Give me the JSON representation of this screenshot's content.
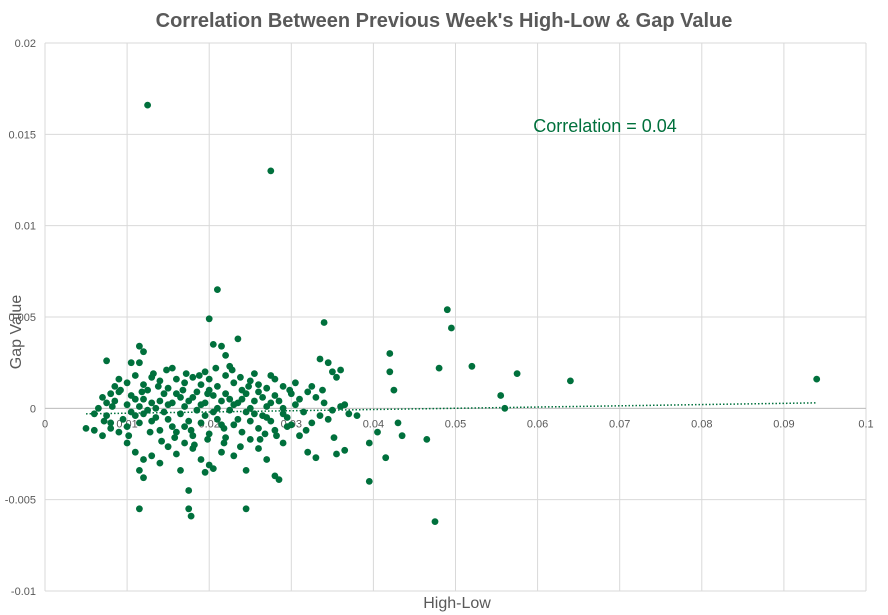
{
  "colors": {
    "marker": "#00703C",
    "grid": "#D9D9D9",
    "text": "#595959",
    "annotation": "#00703C"
  },
  "chart_data": {
    "type": "scatter",
    "title": "Correlation Between Previous Week's High-Low & Gap Value",
    "xlabel": "High-Low",
    "ylabel": "Gap Value",
    "xlim": [
      0,
      0.1
    ],
    "ylim": [
      -0.01,
      0.02
    ],
    "xticks": [
      "0",
      "0.01",
      "0.02",
      "0.03",
      "0.04",
      "0.05",
      "0.06",
      "0.07",
      "0.08",
      "0.09",
      "0.1"
    ],
    "yticks": [
      "-0.01",
      "-0.005",
      "0",
      "0.005",
      "0.01",
      "0.015",
      "0.02"
    ],
    "grid": true,
    "annotation": "Correlation = 0.04",
    "trendline": {
      "style": "dotted",
      "x": [
        0.005,
        0.094
      ],
      "y": [
        -0.0003,
        0.0003
      ]
    },
    "points": [
      [
        0.0125,
        0.0166
      ],
      [
        0.0275,
        0.013
      ],
      [
        0.021,
        0.0065
      ],
      [
        0.049,
        0.0054
      ],
      [
        0.0495,
        0.0044
      ],
      [
        0.034,
        0.0047
      ],
      [
        0.02,
        0.0049
      ],
      [
        0.0235,
        0.0038
      ],
      [
        0.0205,
        0.0035
      ],
      [
        0.0215,
        0.0034
      ],
      [
        0.0115,
        0.0034
      ],
      [
        0.012,
        0.0031
      ],
      [
        0.022,
        0.0029
      ],
      [
        0.042,
        0.003
      ],
      [
        0.042,
        0.002
      ],
      [
        0.048,
        0.0022
      ],
      [
        0.052,
        0.0023
      ],
      [
        0.0575,
        0.0019
      ],
      [
        0.064,
        0.0015
      ],
      [
        0.094,
        0.0016
      ],
      [
        0.0425,
        0.001
      ],
      [
        0.0555,
        0.0007
      ],
      [
        0.056,
        0.0
      ],
      [
        0.0475,
        -0.0062
      ],
      [
        0.0395,
        -0.004
      ],
      [
        0.0465,
        -0.0017
      ],
      [
        0.0435,
        -0.0015
      ],
      [
        0.0415,
        -0.0027
      ],
      [
        0.043,
        -0.0008
      ],
      [
        0.0335,
        0.0027
      ],
      [
        0.0345,
        0.0025
      ],
      [
        0.035,
        0.002
      ],
      [
        0.036,
        0.0021
      ],
      [
        0.0355,
        0.0017
      ],
      [
        0.0245,
        -0.0055
      ],
      [
        0.0115,
        -0.0055
      ],
      [
        0.0175,
        -0.0055
      ],
      [
        0.0178,
        -0.0059
      ],
      [
        0.0175,
        -0.0045
      ],
      [
        0.0285,
        -0.0039
      ],
      [
        0.028,
        -0.0037
      ],
      [
        0.0245,
        -0.0034
      ],
      [
        0.0205,
        -0.0033
      ],
      [
        0.0195,
        -0.0035
      ],
      [
        0.0115,
        -0.0034
      ],
      [
        0.012,
        -0.0038
      ],
      [
        0.0165,
        -0.0034
      ],
      [
        0.0075,
        0.0026
      ],
      [
        0.0105,
        0.0025
      ],
      [
        0.0115,
        0.0025
      ],
      [
        0.0155,
        0.0022
      ],
      [
        0.0195,
        0.002
      ],
      [
        0.0225,
        0.0023
      ],
      [
        0.0255,
        0.0019
      ],
      [
        0.0275,
        0.0018
      ],
      [
        0.0305,
        0.0014
      ],
      [
        0.0325,
        0.0012
      ],
      [
        0.0365,
        0.0002
      ],
      [
        0.038,
        -0.0004
      ],
      [
        0.0395,
        -0.0019
      ],
      [
        0.0405,
        -0.0013
      ],
      [
        0.0365,
        -0.0023
      ],
      [
        0.0355,
        -0.0025
      ],
      [
        0.033,
        -0.0027
      ],
      [
        0.032,
        -0.0024
      ],
      [
        0.031,
        -0.0015
      ],
      [
        0.0295,
        -0.001
      ],
      [
        0.029,
        -0.0019
      ],
      [
        0.027,
        -0.0028
      ],
      [
        0.026,
        -0.0022
      ],
      [
        0.025,
        -0.0017
      ],
      [
        0.023,
        -0.0026
      ],
      [
        0.0215,
        -0.0024
      ],
      [
        0.02,
        -0.0031
      ],
      [
        0.019,
        -0.0028
      ],
      [
        0.018,
        -0.0022
      ],
      [
        0.017,
        -0.0019
      ],
      [
        0.016,
        -0.0025
      ],
      [
        0.015,
        -0.0021
      ],
      [
        0.014,
        -0.003
      ],
      [
        0.013,
        -0.0026
      ],
      [
        0.012,
        -0.0028
      ],
      [
        0.011,
        -0.0024
      ],
      [
        0.01,
        -0.0019
      ],
      [
        0.009,
        -0.0013
      ],
      [
        0.008,
        -0.0011
      ],
      [
        0.007,
        -0.0015
      ],
      [
        0.006,
        -0.0012
      ],
      [
        0.005,
        -0.0011
      ],
      [
        0.006,
        -0.0003
      ],
      [
        0.0065,
        0.0
      ],
      [
        0.0075,
        0.0003
      ],
      [
        0.008,
        0.0008
      ],
      [
        0.0085,
        0.0012
      ],
      [
        0.009,
        0.0016
      ],
      [
        0.01,
        0.0014
      ],
      [
        0.011,
        0.0018
      ],
      [
        0.012,
        0.0013
      ],
      [
        0.013,
        0.0017
      ],
      [
        0.014,
        0.0015
      ],
      [
        0.015,
        0.0011
      ],
      [
        0.016,
        0.0016
      ],
      [
        0.017,
        0.0014
      ],
      [
        0.018,
        0.0017
      ],
      [
        0.019,
        0.0013
      ],
      [
        0.02,
        0.0016
      ],
      [
        0.021,
        0.0012
      ],
      [
        0.022,
        0.0018
      ],
      [
        0.023,
        0.0014
      ],
      [
        0.024,
        0.001
      ],
      [
        0.025,
        0.0015
      ],
      [
        0.026,
        0.0013
      ],
      [
        0.027,
        0.0011
      ],
      [
        0.028,
        0.0016
      ],
      [
        0.029,
        0.0012
      ],
      [
        0.03,
        0.0008
      ],
      [
        0.031,
        0.0005
      ],
      [
        0.032,
        0.0009
      ],
      [
        0.033,
        0.0006
      ],
      [
        0.034,
        0.0003
      ],
      [
        0.035,
        -0.0001
      ],
      [
        0.036,
        0.0001
      ],
      [
        0.037,
        -0.0003
      ],
      [
        0.0345,
        -0.0006
      ],
      [
        0.0335,
        -0.0004
      ],
      [
        0.0325,
        -0.0008
      ],
      [
        0.0315,
        -0.0002
      ],
      [
        0.0305,
        0.0002
      ],
      [
        0.0295,
        -0.0005
      ],
      [
        0.0285,
        0.0004
      ],
      [
        0.0275,
        -0.0007
      ],
      [
        0.0265,
        0.0006
      ],
      [
        0.0255,
        -0.0003
      ],
      [
        0.0245,
        0.0008
      ],
      [
        0.0235,
        -0.0006
      ],
      [
        0.0225,
        0.0005
      ],
      [
        0.0215,
        -0.0009
      ],
      [
        0.0205,
        0.0007
      ],
      [
        0.0195,
        -0.0004
      ],
      [
        0.0185,
        0.0009
      ],
      [
        0.0175,
        -0.0007
      ],
      [
        0.0165,
        0.0006
      ],
      [
        0.0155,
        -0.001
      ],
      [
        0.0145,
        0.0008
      ],
      [
        0.0135,
        -0.0005
      ],
      [
        0.0125,
        0.001
      ],
      [
        0.0115,
        -0.0008
      ],
      [
        0.0105,
        0.0007
      ],
      [
        0.0095,
        -0.0006
      ],
      [
        0.0085,
        0.0004
      ],
      [
        0.0075,
        -0.0004
      ],
      [
        0.007,
        0.0006
      ],
      [
        0.008,
        -0.0008
      ],
      [
        0.009,
        0.0009
      ],
      [
        0.01,
        -0.001
      ],
      [
        0.011,
        0.0005
      ],
      [
        0.012,
        -0.0003
      ],
      [
        0.013,
        0.0003
      ],
      [
        0.014,
        -0.0012
      ],
      [
        0.015,
        0.0002
      ],
      [
        0.016,
        -0.0013
      ],
      [
        0.017,
        0.0001
      ],
      [
        0.018,
        -0.0015
      ],
      [
        0.019,
        0.0002
      ],
      [
        0.02,
        -0.0014
      ],
      [
        0.021,
        0.0
      ],
      [
        0.022,
        -0.0016
      ],
      [
        0.023,
        0.0002
      ],
      [
        0.024,
        -0.0013
      ],
      [
        0.025,
        0.0
      ],
      [
        0.026,
        -0.0011
      ],
      [
        0.027,
        0.0001
      ],
      [
        0.028,
        -0.0012
      ],
      [
        0.029,
        0.0
      ],
      [
        0.03,
        -0.0009
      ],
      [
        0.0105,
        -0.0002
      ],
      [
        0.0115,
        0.0001
      ],
      [
        0.0125,
        -0.0001
      ],
      [
        0.0135,
        0.0
      ],
      [
        0.0145,
        -0.0002
      ],
      [
        0.0155,
        0.0003
      ],
      [
        0.0165,
        -0.0003
      ],
      [
        0.0175,
        0.0004
      ],
      [
        0.0185,
        -0.0001
      ],
      [
        0.0195,
        0.0003
      ],
      [
        0.0205,
        -0.0002
      ],
      [
        0.0215,
        0.0004
      ],
      [
        0.0225,
        -0.0001
      ],
      [
        0.0235,
        0.0003
      ],
      [
        0.0245,
        -0.0002
      ],
      [
        0.0255,
        0.0004
      ],
      [
        0.0265,
        -0.0004
      ],
      [
        0.0275,
        0.0003
      ],
      [
        0.01,
        0.0002
      ],
      [
        0.011,
        -0.0004
      ],
      [
        0.012,
        0.0005
      ],
      [
        0.013,
        -0.0007
      ],
      [
        0.014,
        0.0004
      ],
      [
        0.015,
        -0.0006
      ],
      [
        0.016,
        0.0008
      ],
      [
        0.017,
        -0.001
      ],
      [
        0.018,
        0.0006
      ],
      [
        0.019,
        -0.0008
      ],
      [
        0.02,
        0.001
      ],
      [
        0.021,
        -0.0006
      ],
      [
        0.022,
        0.0008
      ],
      [
        0.023,
        -0.0009
      ],
      [
        0.024,
        0.0005
      ],
      [
        0.025,
        -0.0007
      ],
      [
        0.026,
        0.0009
      ],
      [
        0.027,
        -0.0005
      ],
      [
        0.028,
        0.0007
      ],
      [
        0.029,
        -0.0003
      ],
      [
        0.0132,
        0.0019
      ],
      [
        0.0148,
        0.0021
      ],
      [
        0.0172,
        0.0019
      ],
      [
        0.0188,
        0.0018
      ],
      [
        0.0208,
        0.0022
      ],
      [
        0.0228,
        0.0021
      ],
      [
        0.0238,
        0.0017
      ],
      [
        0.0142,
        -0.0018
      ],
      [
        0.0158,
        -0.0016
      ],
      [
        0.0182,
        -0.002
      ],
      [
        0.0198,
        -0.0017
      ],
      [
        0.0218,
        -0.0019
      ],
      [
        0.0238,
        -0.0021
      ],
      [
        0.0262,
        -0.0017
      ],
      [
        0.0282,
        -0.0015
      ],
      [
        0.0102,
        -0.0015
      ],
      [
        0.0092,
        0.001
      ],
      [
        0.0082,
        0.0001
      ],
      [
        0.0072,
        -0.0007
      ],
      [
        0.0118,
        0.0009
      ],
      [
        0.0128,
        -0.0013
      ],
      [
        0.0138,
        0.0012
      ],
      [
        0.0168,
        0.001
      ],
      [
        0.0178,
        -0.0012
      ],
      [
        0.0198,
        0.0008
      ],
      [
        0.0218,
        -0.0011
      ],
      [
        0.0248,
        0.0012
      ],
      [
        0.0268,
        -0.0014
      ],
      [
        0.0298,
        0.001
      ],
      [
        0.0318,
        -0.0012
      ],
      [
        0.0338,
        0.001
      ],
      [
        0.0352,
        -0.0016
      ]
    ]
  }
}
